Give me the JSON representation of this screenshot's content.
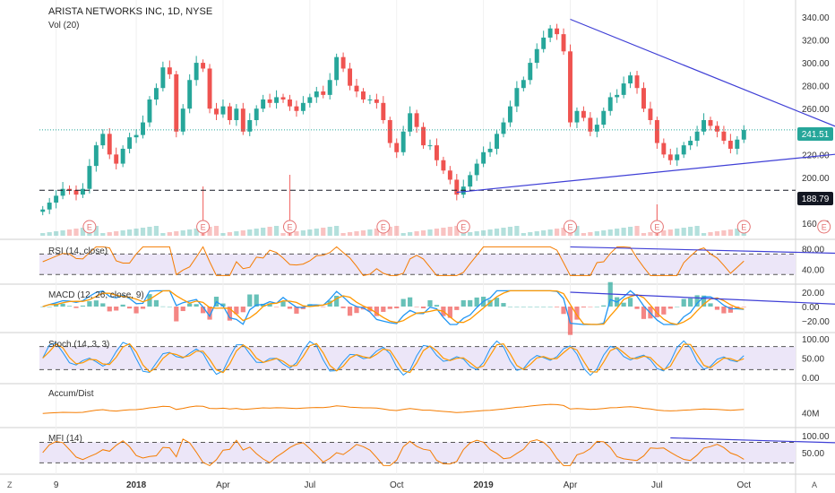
{
  "header": {
    "title": "ARISTA NETWORKS INC, 1D, NYSE",
    "volume_label": "Vol (20)"
  },
  "price_badges": {
    "last_price": "241.51",
    "support_level": "188.79",
    "last_color": "#26a69a",
    "support_color": "#131722"
  },
  "corner_buttons": {
    "left": "Z",
    "right": "A"
  },
  "earnings_marker_label": "E",
  "x_axis": {
    "labels": [
      "9",
      "2018",
      "Apr",
      "Jul",
      "Oct",
      "2019",
      "Apr",
      "Jul",
      "Oct"
    ],
    "bold": [
      false,
      true,
      false,
      false,
      false,
      true,
      false,
      false,
      false
    ]
  },
  "colors": {
    "up_candle": "#26a69a",
    "down_candle": "#ef5350",
    "trendline": "#3f3fd6",
    "oscillator_line": "#f57c00",
    "macd_line": "#2196f3",
    "signal_line": "#ff9800",
    "band_fill": "#ece6f8"
  },
  "panes": {
    "rsi": {
      "label": "RSI (14, close)",
      "ticks": [
        "80.00",
        "40.00"
      ],
      "tick_values": [
        80,
        40
      ],
      "range": [
        20,
        90
      ]
    },
    "macd": {
      "label": "MACD (12, 26, close, 9)",
      "ticks": [
        "20.00",
        "0.00",
        "−20.00"
      ],
      "tick_values": [
        20,
        0,
        -20
      ],
      "range": [
        -30,
        25
      ]
    },
    "stoch": {
      "label": "Stoch (14, 3, 3)",
      "ticks": [
        "100.00",
        "50.00",
        "0.00"
      ],
      "tick_values": [
        100,
        50,
        0
      ],
      "range": [
        -5,
        105
      ]
    },
    "accum": {
      "label": "Accum/Dist",
      "ticks": [
        "40M"
      ]
    },
    "mfi": {
      "label": "MFI (14)",
      "ticks": [
        "100.00",
        "50.00"
      ],
      "tick_values": [
        100,
        50
      ],
      "range": [
        0,
        110
      ]
    }
  },
  "chart_data": {
    "type": "line",
    "title": "ARISTA NETWORKS INC, 1D, NYSE",
    "y_ticks": [
      160,
      180,
      200,
      220,
      240,
      260,
      280,
      300,
      320,
      340
    ],
    "ylim": [
      153,
      347
    ],
    "x_month_ticks": [
      "9",
      "2018",
      "Apr",
      "Jul",
      "Oct",
      "2019",
      "Apr",
      "Jul",
      "Oct"
    ],
    "series": [
      {
        "values": [
          172,
          178,
          184,
          190,
          189,
          185,
          190,
          210,
          228,
          238,
          220,
          212,
          225,
          235,
          237,
          248,
          268,
          278,
          296,
          290,
          240,
          260,
          285,
          300,
          295,
          260,
          255,
          262,
          250,
          260,
          240,
          250,
          260,
          268,
          265,
          270,
          268,
          262,
          258,
          265,
          270,
          275,
          272,
          285,
          305,
          295,
          280,
          275,
          268,
          268,
          265,
          250,
          230,
          222,
          240,
          256,
          244,
          228,
          228,
          215,
          206,
          198,
          185,
          192,
          202,
          212,
          222,
          225,
          238,
          248,
          262,
          278,
          285,
          300,
          312,
          322,
          330,
          325,
          310,
          248,
          258,
          252,
          240,
          246,
          258,
          270,
          272,
          282,
          289,
          278,
          260,
          250,
          230,
          220,
          215,
          220,
          228,
          232,
          240,
          250,
          245,
          240,
          232,
          225,
          233,
          241.51
        ]
      }
    ],
    "trendlines": [
      {
        "from": [
          79,
          338
        ],
        "to": [
          127,
          225
        ]
      },
      {
        "from": [
          62,
          187
        ],
        "to": [
          127,
          225
        ]
      }
    ],
    "horizontal_levels": [
      {
        "value": 188.79,
        "style": "dashed"
      },
      {
        "value": 241.51,
        "style": "dotted"
      }
    ],
    "earnings_events_index": [
      7,
      24,
      37,
      51,
      63,
      79,
      92,
      105,
      117
    ],
    "xlabel": "",
    "ylabel": ""
  }
}
